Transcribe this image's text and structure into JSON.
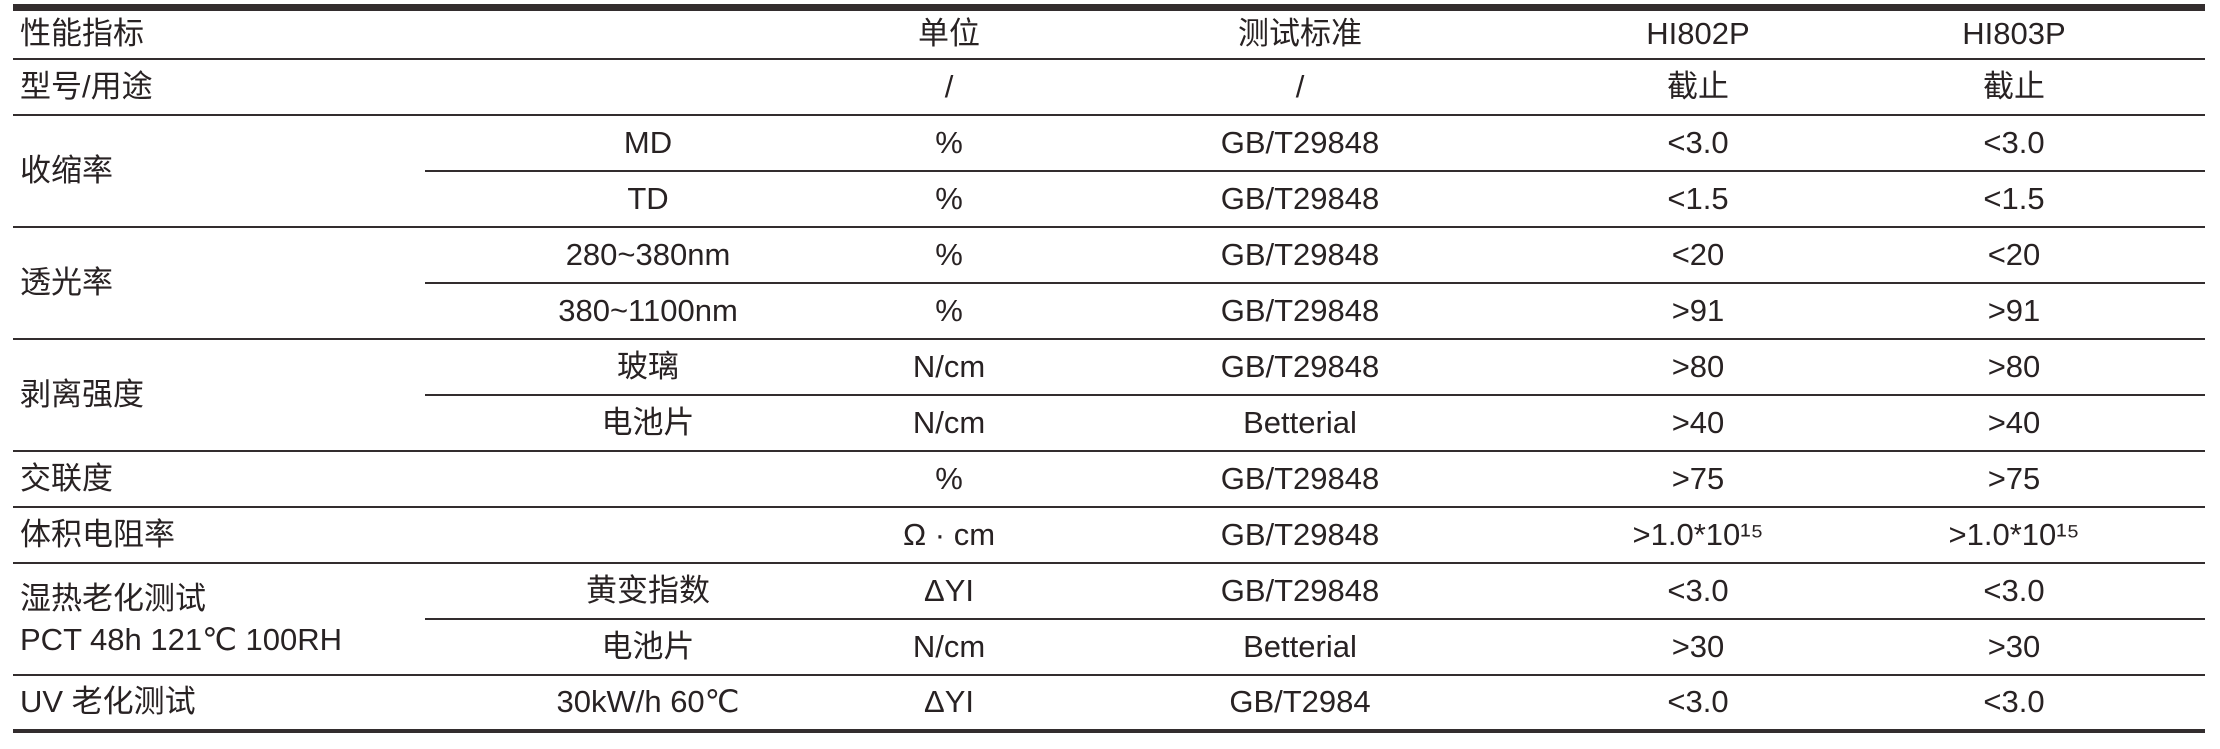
{
  "page": {
    "background": "#ffffff",
    "text_color": "#282223",
    "line_color": "#332d2e"
  },
  "table": {
    "header": {
      "label": "性能指标",
      "unit": "单位",
      "standard": "测试标准",
      "model_a": "HI802P",
      "model_b": "HI803P"
    },
    "rows": [
      {
        "label": "型号/用途",
        "sub": "",
        "unit": "/",
        "standard": "/",
        "model_a": "截止",
        "model_b": "截止"
      },
      {
        "label": "收缩率",
        "sub": "MD",
        "unit": "%",
        "standard": "GB/T29848",
        "model_a": "<3.0",
        "model_b": "<3.0"
      },
      {
        "sub": "TD",
        "unit": "%",
        "standard": "GB/T29848",
        "model_a": "<1.5",
        "model_b": "<1.5"
      },
      {
        "label": "透光率",
        "sub": "280~380nm",
        "unit": "%",
        "standard": "GB/T29848",
        "model_a": "<20",
        "model_b": "<20"
      },
      {
        "sub": "380~1100nm",
        "unit": "%",
        "standard": "GB/T29848",
        "model_a": ">91",
        "model_b": ">91"
      },
      {
        "label": "剥离强度",
        "sub": "玻璃",
        "unit": "N/cm",
        "standard": "GB/T29848",
        "model_a": ">80",
        "model_b": ">80"
      },
      {
        "sub": "电池片",
        "unit": "N/cm",
        "standard": "Betterial",
        "model_a": ">40",
        "model_b": ">40"
      },
      {
        "label": "交联度",
        "sub": "",
        "unit": "%",
        "standard": "GB/T29848",
        "model_a": ">75",
        "model_b": ">75"
      },
      {
        "label": "体积电阻率",
        "sub": "",
        "unit": "Ω · cm",
        "standard": "GB/T29848",
        "model_a": ">1.0*10¹⁵",
        "model_b": ">1.0*10¹⁵"
      },
      {
        "label_line1": "湿热老化测试",
        "label_line2": "PCT 48h 121℃ 100RH",
        "sub": "黄变指数",
        "unit": "ΔYI",
        "standard": "GB/T29848",
        "model_a": "<3.0",
        "model_b": "<3.0"
      },
      {
        "sub": "电池片",
        "unit": "N/cm",
        "standard": "Betterial",
        "model_a": ">30",
        "model_b": ">30"
      },
      {
        "label": "UV 老化测试",
        "sub": "30kW/h 60℃",
        "unit": "ΔYI",
        "standard": "GB/T2984",
        "model_a": "<3.0",
        "model_b": "<3.0"
      }
    ]
  }
}
